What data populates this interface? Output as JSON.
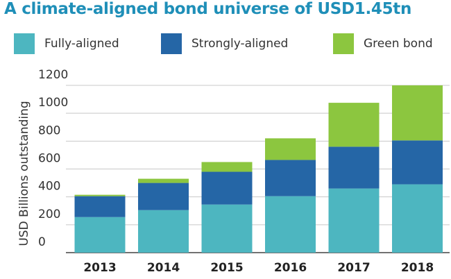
{
  "chart_data": {
    "type": "bar",
    "stacked": true,
    "title": "A climate-aligned bond universe of USD1.45tn",
    "ylabel": "USD Billions outstanding",
    "xlabel": "",
    "categories": [
      "2013",
      "2014",
      "2015",
      "2016",
      "2017",
      "2018"
    ],
    "series": [
      {
        "name": "Fully-aligned",
        "color": "#4db6c0",
        "values": [
          255,
          305,
          345,
          405,
          460,
          490
        ]
      },
      {
        "name": "Strongly-aligned",
        "color": "#2566a6",
        "values": [
          150,
          195,
          235,
          260,
          300,
          315
        ]
      },
      {
        "name": "Green bond",
        "color": "#8cc63f",
        "values": [
          10,
          30,
          70,
          155,
          315,
          395
        ]
      }
    ],
    "ylim": [
      0,
      1200
    ],
    "yticks": [
      "0",
      "200",
      "400",
      "600",
      "800",
      "1000",
      "1200"
    ],
    "grid": true,
    "legend_position": "top"
  }
}
